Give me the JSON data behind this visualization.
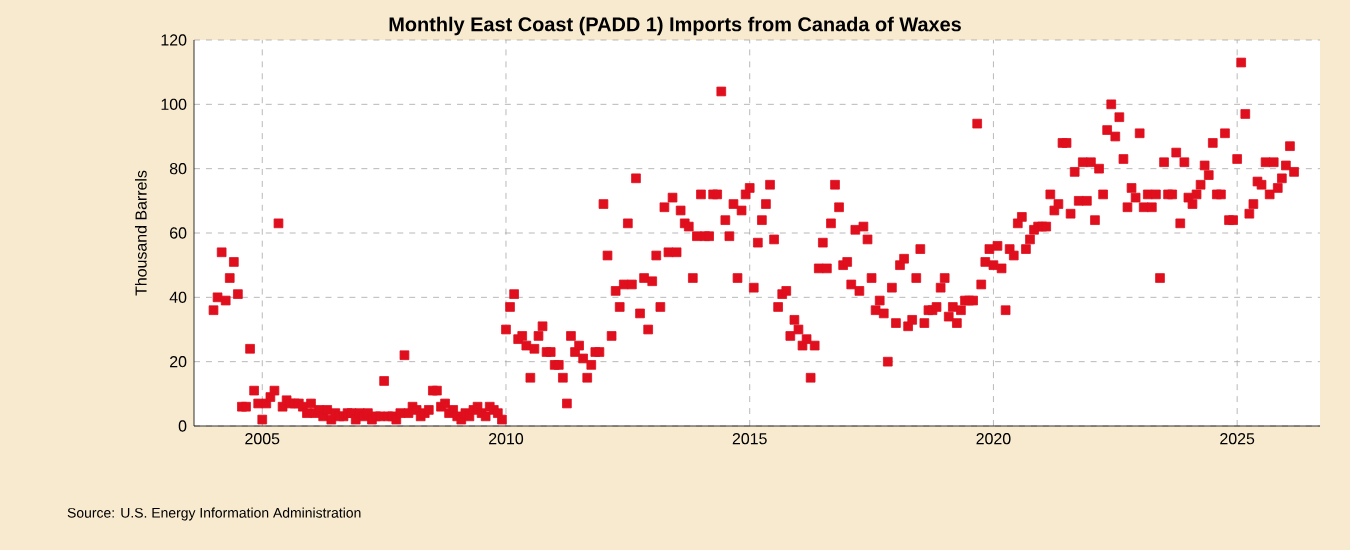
{
  "chart_data": {
    "type": "scatter",
    "title": "Monthly East Coast (PADD 1) Imports from Canada of Waxes",
    "ylabel": "Thousand Barrels",
    "annotations": [
      "Source: U.S. Energy Information Administration"
    ],
    "x": [
      2004.0,
      2004.083,
      2004.167,
      2004.25,
      2004.333,
      2004.417,
      2004.5,
      2004.583,
      2004.667,
      2004.75,
      2004.833,
      2004.917,
      2005.0,
      2005.083,
      2005.167,
      2005.25,
      2005.333,
      2005.417,
      2005.5,
      2005.583,
      2005.667,
      2005.75,
      2005.833,
      2005.917,
      2006.0,
      2006.083,
      2006.167,
      2006.25,
      2006.333,
      2006.417,
      2006.5,
      2006.583,
      2006.667,
      2006.75,
      2006.833,
      2006.917,
      2007.0,
      2007.083,
      2007.167,
      2007.25,
      2007.333,
      2007.417,
      2007.5,
      2007.583,
      2007.667,
      2007.75,
      2007.833,
      2007.917,
      2008.0,
      2008.083,
      2008.167,
      2008.25,
      2008.333,
      2008.417,
      2008.5,
      2008.583,
      2008.667,
      2008.75,
      2008.833,
      2008.917,
      2009.0,
      2009.083,
      2009.167,
      2009.25,
      2009.333,
      2009.417,
      2009.5,
      2009.583,
      2009.667,
      2009.75,
      2009.833,
      2009.917,
      2010.0,
      2010.083,
      2010.167,
      2010.25,
      2010.333,
      2010.417,
      2010.5,
      2010.583,
      2010.667,
      2010.75,
      2010.833,
      2010.917,
      2011.0,
      2011.083,
      2011.167,
      2011.25,
      2011.333,
      2011.417,
      2011.5,
      2011.583,
      2011.667,
      2011.75,
      2011.833,
      2011.917,
      2012.0,
      2012.083,
      2012.167,
      2012.25,
      2012.333,
      2012.417,
      2012.5,
      2012.583,
      2012.667,
      2012.75,
      2012.833,
      2012.917,
      2013.0,
      2013.083,
      2013.167,
      2013.25,
      2013.333,
      2013.417,
      2013.5,
      2013.583,
      2013.667,
      2013.75,
      2013.833,
      2013.917,
      2014.0,
      2014.083,
      2014.167,
      2014.25,
      2014.333,
      2014.417,
      2014.5,
      2014.583,
      2014.667,
      2014.75,
      2014.833,
      2014.917,
      2015.0,
      2015.083,
      2015.167,
      2015.25,
      2015.333,
      2015.417,
      2015.5,
      2015.583,
      2015.667,
      2015.75,
      2015.833,
      2015.917,
      2016.0,
      2016.083,
      2016.167,
      2016.25,
      2016.333,
      2016.417,
      2016.5,
      2016.583,
      2016.667,
      2016.75,
      2016.833,
      2016.917,
      2017.0,
      2017.083,
      2017.167,
      2017.25,
      2017.333,
      2017.417,
      2017.5,
      2017.583,
      2017.667,
      2017.75,
      2017.833,
      2017.917,
      2018.0,
      2018.083,
      2018.167,
      2018.25,
      2018.333,
      2018.417,
      2018.5,
      2018.583,
      2018.667,
      2018.75,
      2018.833,
      2018.917,
      2019.0,
      2019.083,
      2019.167,
      2019.25,
      2019.333,
      2019.417,
      2019.5,
      2019.583,
      2019.667,
      2019.75,
      2019.833,
      2019.917,
      2020.0,
      2020.083,
      2020.167,
      2020.25,
      2020.333,
      2020.417,
      2020.5,
      2020.583,
      2020.667,
      2020.75,
      2020.833,
      2020.917,
      2021.0,
      2021.083,
      2021.167,
      2021.25,
      2021.333,
      2021.417,
      2021.5,
      2021.583,
      2021.667,
      2021.75,
      2021.833,
      2021.917,
      2022.0,
      2022.083,
      2022.167,
      2022.25,
      2022.333,
      2022.417,
      2022.5,
      2022.583,
      2022.667,
      2022.75,
      2022.833,
      2022.917,
      2023.0,
      2023.083,
      2023.167,
      2023.25,
      2023.333,
      2023.417,
      2023.5,
      2023.583,
      2023.667,
      2023.75,
      2023.833,
      2023.917,
      2024.0,
      2024.083,
      2024.167,
      2024.25,
      2024.333,
      2024.417,
      2024.5,
      2024.583,
      2024.667,
      2024.75,
      2024.833,
      2024.917,
      2025.0,
      2025.083,
      2025.167,
      2025.25,
      2025.333,
      2025.417,
      2025.5,
      2025.583,
      2025.667,
      2025.75,
      2025.833,
      2025.917,
      2026.0,
      2026.083,
      2026.167
    ],
    "values": [
      36,
      40,
      54,
      39,
      46,
      51,
      41,
      6,
      6,
      24,
      11,
      7,
      2,
      7,
      9,
      11,
      63,
      6,
      8,
      7,
      7,
      7,
      6,
      4,
      7,
      4,
      5,
      3,
      5,
      2,
      4,
      3,
      3,
      4,
      4,
      2,
      4,
      3,
      4,
      2,
      3,
      3,
      14,
      3,
      3,
      2,
      4,
      22,
      4,
      6,
      5,
      3,
      4,
      5,
      11,
      11,
      6,
      7,
      4,
      5,
      3,
      2,
      4,
      3,
      5,
      6,
      4,
      3,
      6,
      5,
      4,
      2,
      30,
      37,
      41,
      27,
      28,
      25,
      15,
      24,
      28,
      31,
      23,
      23,
      19,
      19,
      15,
      7,
      28,
      23,
      25,
      21,
      15,
      19,
      23,
      23,
      69,
      53,
      28,
      42,
      37,
      44,
      63,
      44,
      77,
      35,
      46,
      30,
      45,
      53,
      37,
      68,
      54,
      71,
      54,
      67,
      63,
      62,
      46,
      59,
      72,
      59,
      59,
      72,
      72,
      104,
      64,
      59,
      69,
      46,
      67,
      72,
      74,
      43,
      57,
      64,
      69,
      75,
      58,
      37,
      41,
      42,
      28,
      33,
      30,
      25,
      27,
      15,
      25,
      49,
      57,
      49,
      63,
      75,
      68,
      50,
      51,
      44,
      61,
      42,
      62,
      58,
      46,
      36,
      39,
      35,
      20,
      43,
      32,
      50,
      52,
      31,
      33,
      46,
      55,
      32,
      36,
      36,
      37,
      43,
      46,
      34,
      37,
      32,
      36,
      39,
      39,
      39,
      94,
      44,
      51,
      55,
      50,
      56,
      49,
      36,
      55,
      53,
      63,
      65,
      55,
      58,
      61,
      62,
      62,
      62,
      72,
      67,
      69,
      88,
      88,
      66,
      79,
      70,
      82,
      70,
      82,
      64,
      80,
      72,
      92,
      100,
      90,
      96,
      83,
      68,
      74,
      71,
      91,
      68,
      72,
      68,
      72,
      46,
      82,
      72,
      72,
      85,
      63,
      82,
      71,
      69,
      72,
      75,
      81,
      78,
      88,
      72,
      72,
      91,
      64,
      64,
      83,
      113,
      97,
      66,
      69,
      76,
      75,
      82,
      72,
      82,
      74,
      77,
      81,
      87,
      79
    ],
    "color": "#e00f1e",
    "marker": "square",
    "grid": true,
    "xlim": [
      2003.6,
      2026.7
    ],
    "xticks": [
      2005,
      2010,
      2015,
      2020,
      2025
    ],
    "ylim": [
      0,
      120
    ],
    "yticks": [
      0,
      20,
      40,
      60,
      80,
      100,
      120
    ]
  }
}
